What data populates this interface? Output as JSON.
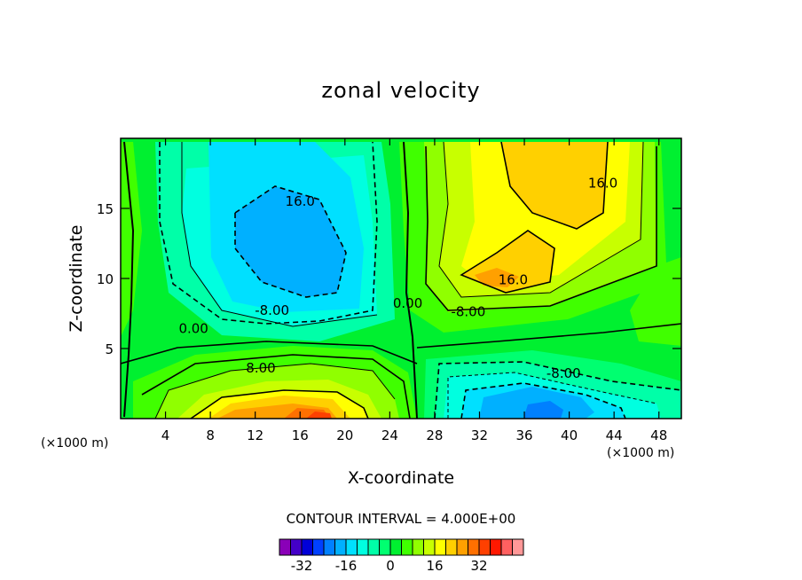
{
  "chart_data": {
    "type": "heatmap",
    "title": "zonal velocity",
    "xlabel": "X-coordinate",
    "ylabel": "Z-coordinate",
    "x_unit_label": "(×1000 m)",
    "x_ticks": [
      4,
      8,
      12,
      16,
      20,
      24,
      28,
      32,
      36,
      40,
      44,
      48
    ],
    "y_ticks": [
      5,
      10,
      15
    ],
    "xlim": [
      0,
      50
    ],
    "ylim": [
      0,
      20
    ],
    "contour_interval_label": "CONTOUR INTERVAL = 4.000E+00",
    "contour_labels": [
      {
        "text": "16.0",
        "x": 16,
        "y": 15.2
      },
      {
        "text": "16.0",
        "x": 43,
        "y": 16.5
      },
      {
        "text": "16.0",
        "x": 35,
        "y": 9.6
      },
      {
        "text": "-8.00",
        "x": 13.5,
        "y": 7.4
      },
      {
        "text": "-8.00",
        "x": 31,
        "y": 7.3
      },
      {
        "text": "8.00",
        "x": 12.5,
        "y": 3.3
      },
      {
        "text": "-8.00",
        "x": 39.5,
        "y": 2.9
      },
      {
        "text": "0.00",
        "x": 6.5,
        "y": 6.1
      },
      {
        "text": "0.00",
        "x": 25.6,
        "y": 7.9
      }
    ],
    "colorbar": {
      "colors": [
        "#8a00b8",
        "#4400c8",
        "#0000d8",
        "#0040ff",
        "#0080ff",
        "#00b0ff",
        "#00e0ff",
        "#00ffe0",
        "#00ffa8",
        "#00ff70",
        "#00f030",
        "#40ff00",
        "#90ff00",
        "#c8ff00",
        "#ffff00",
        "#ffd000",
        "#ffa000",
        "#ff7000",
        "#ff4000",
        "#ff1800",
        "#ff6060",
        "#ff9898"
      ],
      "tick_labels": [
        "-32",
        "-16",
        "0",
        "16",
        "32"
      ],
      "tick_values": [
        -32,
        -16,
        0,
        16,
        32
      ]
    }
  }
}
